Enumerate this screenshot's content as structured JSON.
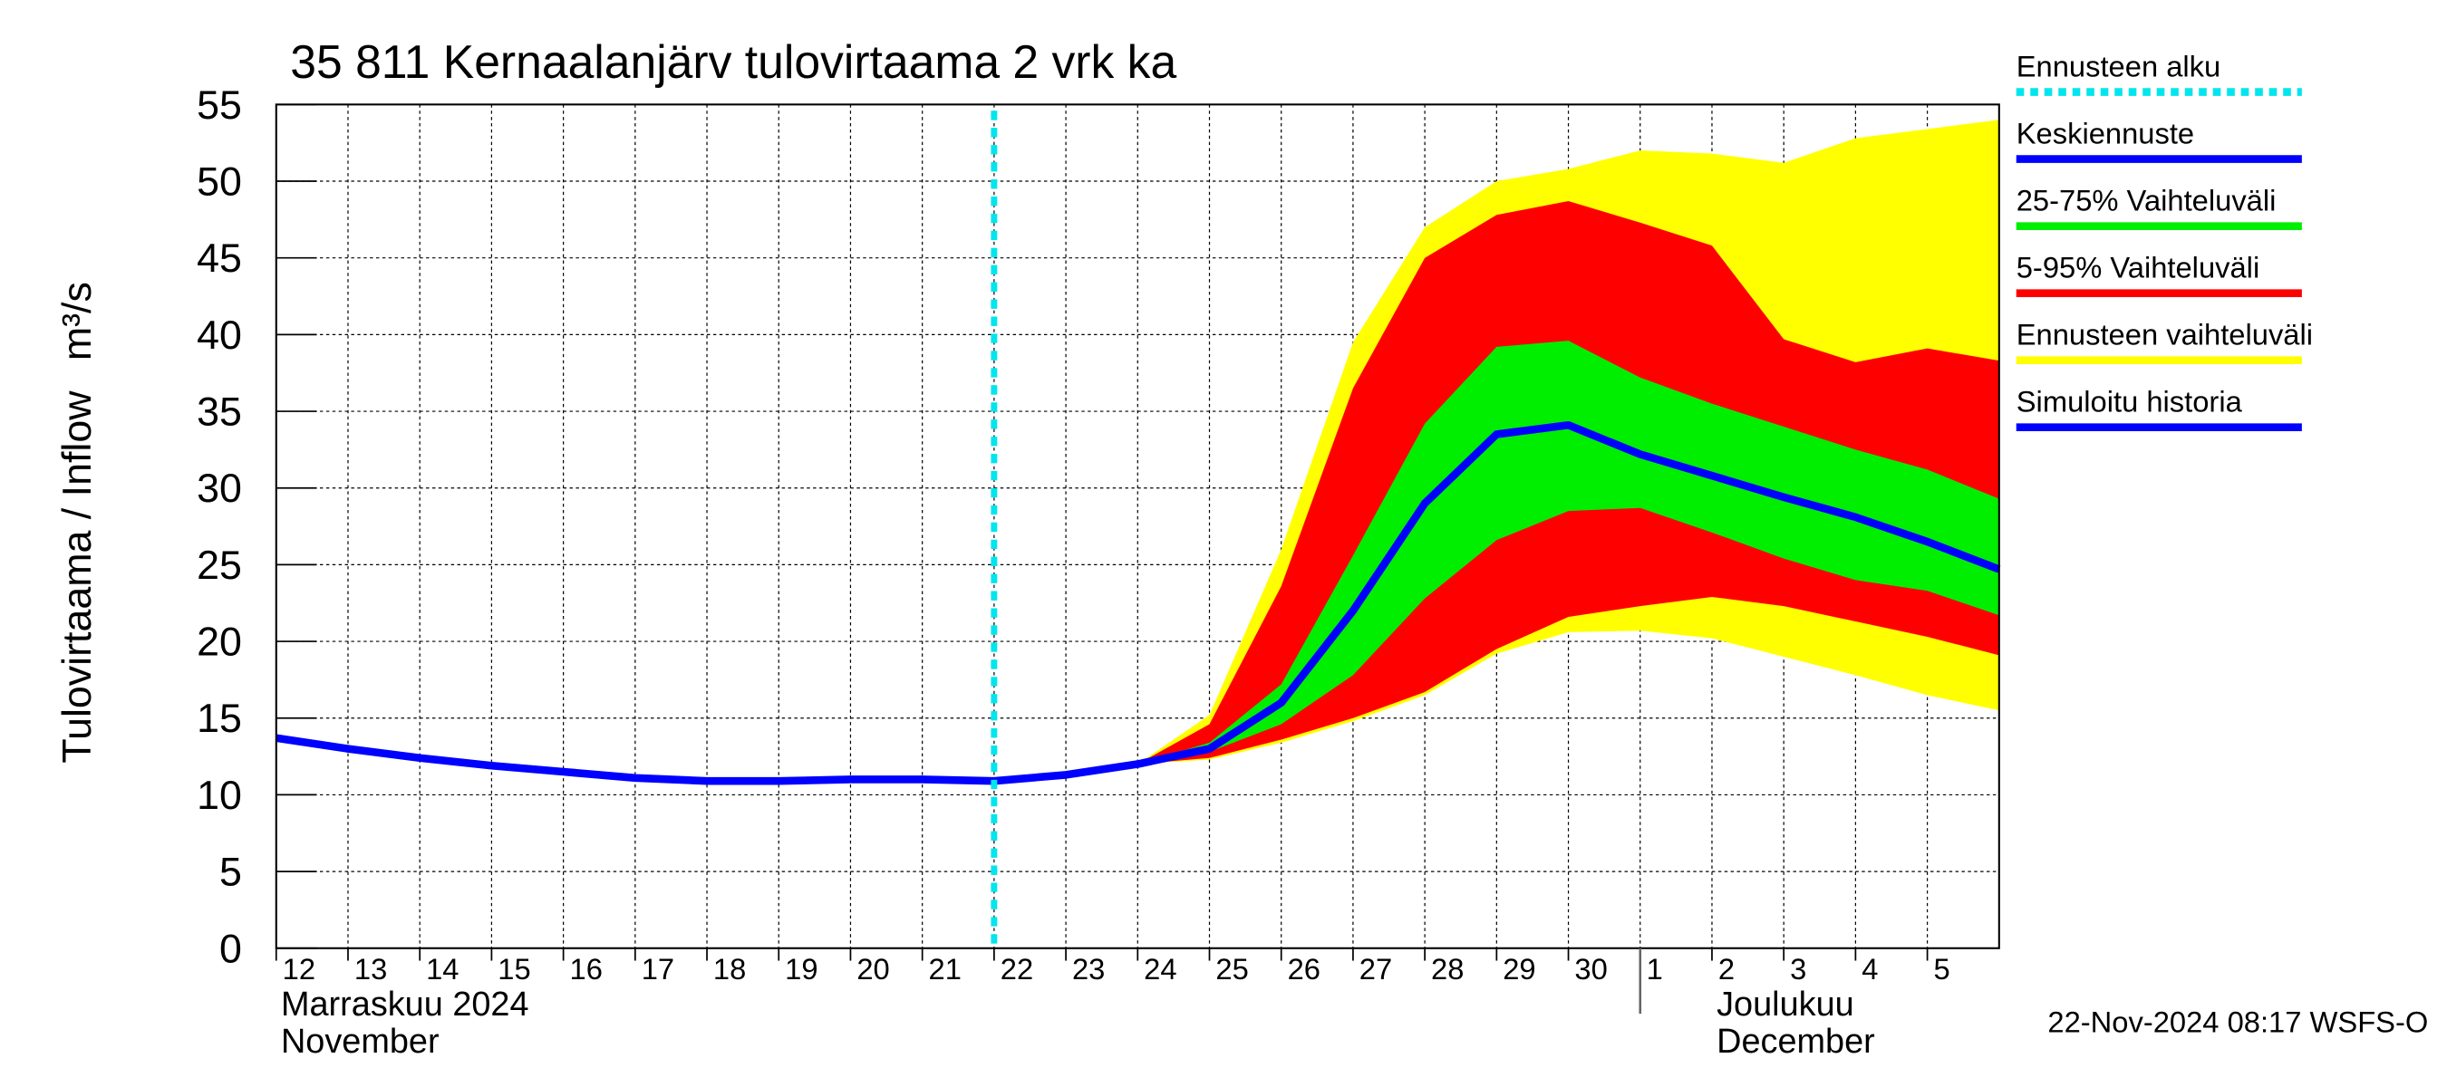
{
  "chart_data": {
    "type": "band-forecast",
    "title": "35 811 Kernaalanjärv tulovirtaama 2 vrk ka",
    "y_label": "Tulovirtaama / Inflow",
    "y_unit": "m³/s",
    "timestamp": "22-Nov-2024 08:17 WSFS-O",
    "xlim": [
      0,
      24
    ],
    "xticks": [
      {
        "value": 0,
        "label": "12"
      },
      {
        "value": 1,
        "label": "13"
      },
      {
        "value": 2,
        "label": "14"
      },
      {
        "value": 3,
        "label": "15"
      },
      {
        "value": 4,
        "label": "16"
      },
      {
        "value": 5,
        "label": "17"
      },
      {
        "value": 6,
        "label": "18"
      },
      {
        "value": 7,
        "label": "19"
      },
      {
        "value": 8,
        "label": "20"
      },
      {
        "value": 9,
        "label": "21"
      },
      {
        "value": 10,
        "label": "22"
      },
      {
        "value": 11,
        "label": "23"
      },
      {
        "value": 12,
        "label": "24"
      },
      {
        "value": 13,
        "label": "25"
      },
      {
        "value": 14,
        "label": "26"
      },
      {
        "value": 15,
        "label": "27"
      },
      {
        "value": 16,
        "label": "28"
      },
      {
        "value": 17,
        "label": "29"
      },
      {
        "value": 18,
        "label": "30"
      },
      {
        "value": 19,
        "label": "1"
      },
      {
        "value": 20,
        "label": "2"
      },
      {
        "value": 21,
        "label": "3"
      },
      {
        "value": 22,
        "label": "4"
      },
      {
        "value": 23,
        "label": "5"
      }
    ],
    "ylim": [
      0,
      55
    ],
    "yticks": [
      0,
      5,
      10,
      15,
      20,
      25,
      30,
      35,
      40,
      45,
      50,
      55
    ],
    "grid": true,
    "months": [
      {
        "x": 0,
        "label": "Marraskuu 2024",
        "label_en": "November"
      },
      {
        "x": 19,
        "label": "Joulukuu",
        "label_en": "December"
      }
    ],
    "forecast_start": {
      "name": "Ennusteen alku",
      "color": "#00e5ee",
      "x": 10
    },
    "bands": [
      {
        "name": "Ennusteen vaihteluväli",
        "color": "#ffff00",
        "x": [
          12,
          13,
          14,
          15,
          16,
          17,
          18,
          19,
          20,
          21,
          22,
          23,
          24
        ],
        "upper": [
          12.0,
          15.2,
          26,
          39.5,
          47,
          50,
          50.8,
          52,
          51.8,
          51.2,
          52.8,
          53.4,
          54.0
        ],
        "lower": [
          12.0,
          12.3,
          13.4,
          14.8,
          16.5,
          19.2,
          20.6,
          20.7,
          20.2,
          19.0,
          17.8,
          16.5,
          15.5
        ]
      },
      {
        "name": "5-95% Vaihteluväli",
        "color": "#ff0000",
        "x": [
          12,
          13,
          14,
          15,
          16,
          17,
          18,
          19,
          20,
          21,
          22,
          23,
          24
        ],
        "upper": [
          12.0,
          14.6,
          23.6,
          36.5,
          45,
          47.8,
          48.7,
          47.3,
          45.8,
          39.7,
          38.2,
          39.1,
          38.3
        ],
        "lower": [
          12.0,
          12.4,
          13.6,
          15,
          16.7,
          19.5,
          21.6,
          22.3,
          22.9,
          22.3,
          21.3,
          20.3,
          19.1
        ]
      },
      {
        "name": "25-75% Vaihteluväli",
        "color": "#00ee00",
        "x": [
          12,
          13,
          14,
          15,
          16,
          17,
          18,
          19,
          20,
          21,
          22,
          23,
          24
        ],
        "upper": [
          12.0,
          13.4,
          17.2,
          25.6,
          34.2,
          39.2,
          39.6,
          37.2,
          35.5,
          34.0,
          32.5,
          31.2,
          29.3
        ],
        "lower": [
          12.0,
          12.8,
          14.6,
          17.8,
          22.8,
          26.6,
          28.5,
          28.7,
          27.1,
          25.4,
          24.0,
          23.3,
          21.7
        ]
      }
    ],
    "series": [
      {
        "name": "Keskiennuste",
        "color": "#0000ff",
        "x": [
          10,
          11,
          12,
          13,
          14,
          15,
          16,
          17,
          18,
          19,
          20,
          21,
          22,
          23,
          24
        ],
        "values": [
          10.9,
          11.3,
          12.0,
          13.0,
          16.0,
          22,
          29,
          33.5,
          34.1,
          32.2,
          30.8,
          29.4,
          28.1,
          26.5,
          24.7
        ]
      },
      {
        "name": "Simuloitu historia",
        "color": "#0000ff",
        "x": [
          0,
          1,
          2,
          3,
          4,
          5,
          6,
          7,
          8,
          9,
          10
        ],
        "values": [
          13.7,
          13.0,
          12.4,
          11.9,
          11.5,
          11.1,
          10.9,
          10.9,
          11.0,
          11.0,
          10.9
        ]
      }
    ]
  }
}
